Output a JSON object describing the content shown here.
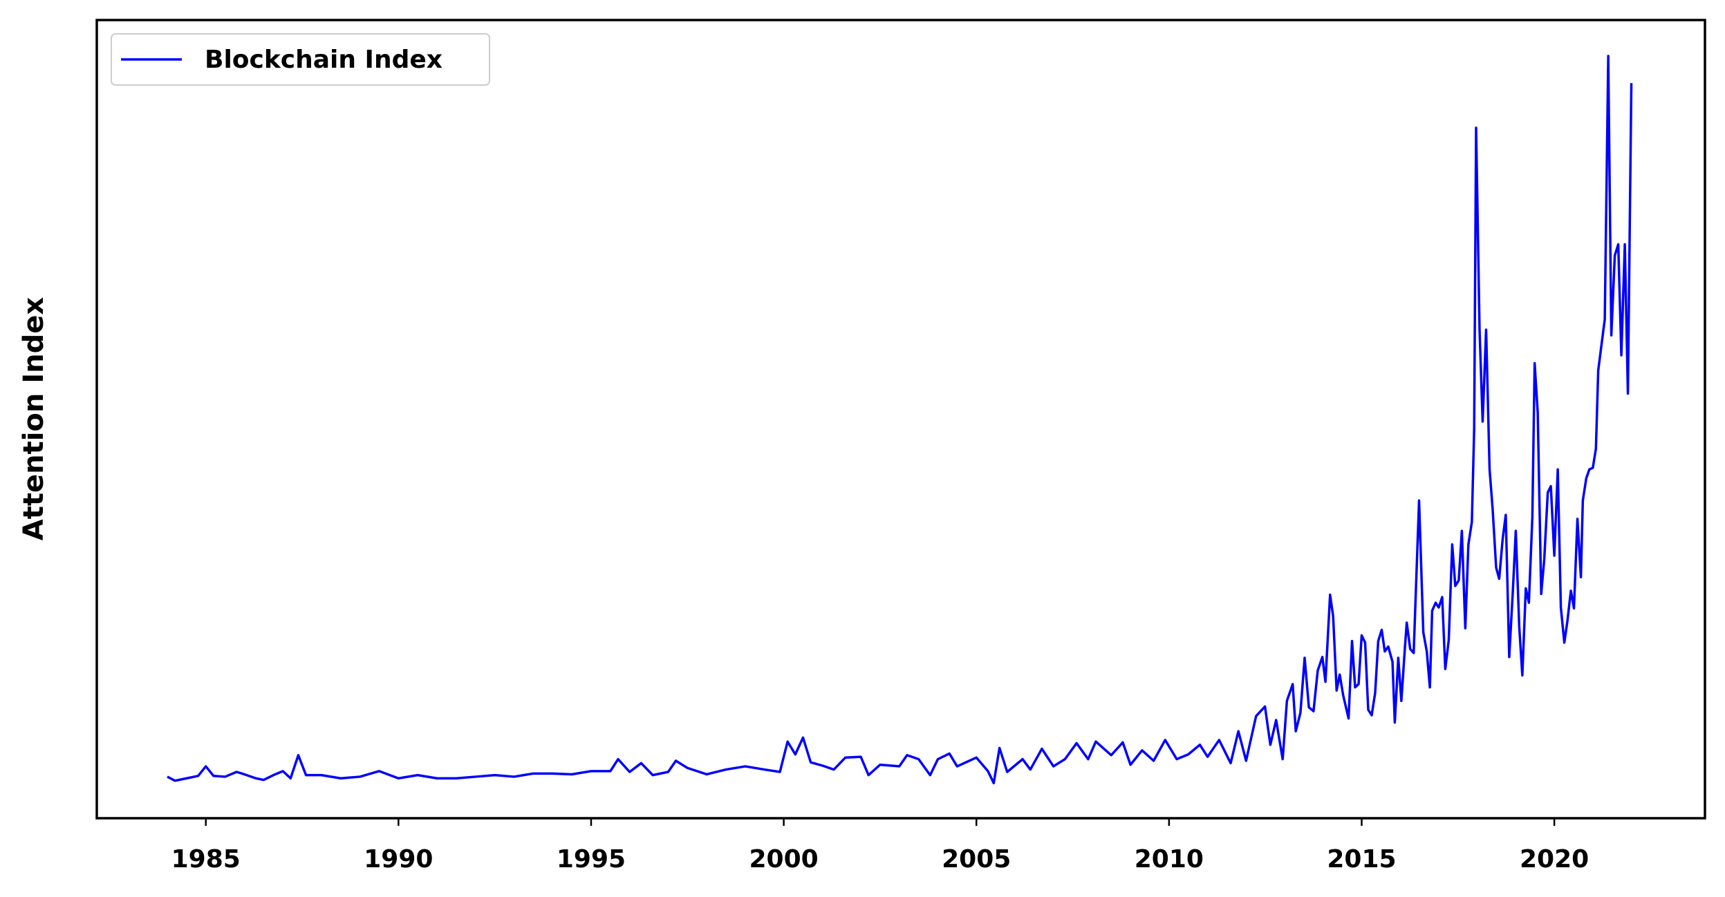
{
  "chart_data": {
    "type": "line",
    "ylabel": "Attention Index",
    "legend": "upper left",
    "xlim": [
      1982.17,
      2023.91
    ],
    "xticks": [
      1985,
      1990,
      1995,
      2000,
      2005,
      2010,
      2015,
      2020
    ],
    "ylim": [
      0,
      100
    ],
    "x": [
      1984.0,
      1984.2,
      1984.5,
      1984.8,
      1985.0,
      1985.2,
      1985.5,
      1985.8,
      1986.0,
      1986.3,
      1986.5,
      1986.8,
      1987.0,
      1987.2,
      1987.4,
      1987.6,
      1988.0,
      1988.5,
      1989.0,
      1989.5,
      1990.0,
      1990.5,
      1991.0,
      1991.5,
      1992.0,
      1992.5,
      1993.0,
      1993.5,
      1994.0,
      1994.5,
      1995.0,
      1995.5,
      1995.7,
      1996.0,
      1996.3,
      1996.6,
      1997.0,
      1997.2,
      1997.5,
      1998.0,
      1998.5,
      1999.0,
      1999.5,
      1999.9,
      2000.1,
      2000.3,
      2000.5,
      2000.7,
      2001.0,
      2001.3,
      2001.6,
      2002.0,
      2002.2,
      2002.5,
      2003.0,
      2003.2,
      2003.5,
      2003.8,
      2004.0,
      2004.3,
      2004.5,
      2005.0,
      2005.3,
      2005.45,
      2005.6,
      2005.8,
      2006.2,
      2006.4,
      2006.7,
      2007.0,
      2007.3,
      2007.6,
      2007.9,
      2008.1,
      2008.5,
      2008.8,
      2009.0,
      2009.3,
      2009.6,
      2009.9,
      2010.2,
      2010.5,
      2010.8,
      2011.0,
      2011.3,
      2011.6,
      2011.8,
      2012.0,
      2012.26,
      2012.49,
      2012.63,
      2012.78,
      2012.95,
      2013.06,
      2013.21,
      2013.29,
      2013.41,
      2013.52,
      2013.63,
      2013.75,
      2013.86,
      2013.98,
      2014.06,
      2014.18,
      2014.26,
      2014.35,
      2014.43,
      2014.52,
      2014.66,
      2014.75,
      2014.83,
      2014.92,
      2015.0,
      2015.09,
      2015.17,
      2015.26,
      2015.35,
      2015.43,
      2015.52,
      2015.6,
      2015.69,
      2015.8,
      2015.86,
      2015.95,
      2016.03,
      2016.12,
      2016.17,
      2016.26,
      2016.35,
      2016.49,
      2016.6,
      2016.69,
      2016.77,
      2016.83,
      2016.92,
      2017.0,
      2017.09,
      2017.17,
      2017.26,
      2017.35,
      2017.43,
      2017.52,
      2017.6,
      2017.69,
      2017.77,
      2017.86,
      2017.92,
      2017.97,
      2018.06,
      2018.14,
      2018.23,
      2018.32,
      2018.4,
      2018.49,
      2018.57,
      2018.66,
      2018.74,
      2018.83,
      2018.92,
      2019.0,
      2019.09,
      2019.17,
      2019.26,
      2019.34,
      2019.43,
      2019.49,
      2019.57,
      2019.66,
      2019.74,
      2019.83,
      2019.91,
      2020.0,
      2020.09,
      2020.17,
      2020.26,
      2020.34,
      2020.43,
      2020.51,
      2020.6,
      2020.69,
      2020.74,
      2020.83,
      2020.91,
      2021.0,
      2021.08,
      2021.14,
      2021.23,
      2021.31,
      2021.4,
      2021.48,
      2021.57,
      2021.66,
      2021.74,
      2021.83,
      2021.91,
      2022.0
    ],
    "series": [
      {
        "name": "Blockchain Index",
        "color": "#0000ff",
        "values": [
          5.2,
          4.7,
          5.0,
          5.3,
          6.5,
          5.3,
          5.2,
          5.8,
          5.5,
          5.0,
          4.8,
          5.5,
          5.9,
          5.0,
          7.9,
          5.4,
          5.4,
          5.0,
          5.2,
          5.9,
          5.0,
          5.4,
          5.0,
          5.0,
          5.2,
          5.4,
          5.2,
          5.6,
          5.6,
          5.5,
          5.9,
          5.9,
          7.4,
          5.8,
          6.9,
          5.4,
          5.8,
          7.2,
          6.3,
          5.5,
          6.1,
          6.5,
          6.1,
          5.8,
          9.6,
          8.0,
          10.1,
          7.0,
          6.6,
          6.1,
          7.6,
          7.7,
          5.4,
          6.7,
          6.5,
          7.9,
          7.4,
          5.4,
          7.4,
          8.1,
          6.5,
          7.6,
          5.9,
          4.4,
          8.8,
          5.8,
          7.4,
          6.1,
          8.7,
          6.5,
          7.4,
          9.4,
          7.4,
          9.6,
          7.9,
          9.5,
          6.7,
          8.5,
          7.2,
          9.8,
          7.4,
          8.0,
          9.2,
          7.7,
          9.8,
          6.9,
          10.9,
          7.2,
          12.8,
          14.0,
          9.2,
          12.3,
          7.4,
          14.7,
          16.8,
          10.9,
          13.2,
          20.1,
          13.9,
          13.4,
          18.5,
          20.2,
          17.1,
          28.0,
          25.3,
          16.0,
          18.0,
          15.4,
          12.5,
          22.2,
          16.4,
          16.8,
          22.9,
          22.0,
          13.6,
          12.9,
          15.7,
          22.2,
          23.6,
          20.9,
          21.5,
          19.6,
          12.0,
          20.1,
          14.7,
          21.2,
          24.5,
          21.2,
          20.7,
          39.8,
          23.3,
          20.9,
          16.4,
          26.0,
          27.0,
          26.4,
          27.7,
          18.7,
          22.3,
          34.3,
          29.1,
          29.8,
          36.0,
          23.8,
          34.3,
          37.1,
          48.8,
          86.5,
          61.2,
          49.7,
          61.2,
          43.7,
          38.7,
          31.4,
          30.0,
          35.0,
          38.0,
          20.2,
          28.1,
          36.0,
          24.0,
          17.9,
          28.8,
          27.0,
          37.7,
          57.0,
          50.8,
          28.1,
          32.5,
          40.8,
          41.6,
          32.9,
          43.7,
          26.4,
          22.0,
          24.7,
          28.5,
          26.3,
          37.5,
          30.2,
          39.8,
          42.6,
          43.7,
          43.9,
          46.3,
          56.1,
          59.5,
          62.5,
          95.5,
          60.5,
          70.5,
          71.9,
          58.0,
          71.9,
          53.2,
          92.1
        ]
      }
    ]
  }
}
